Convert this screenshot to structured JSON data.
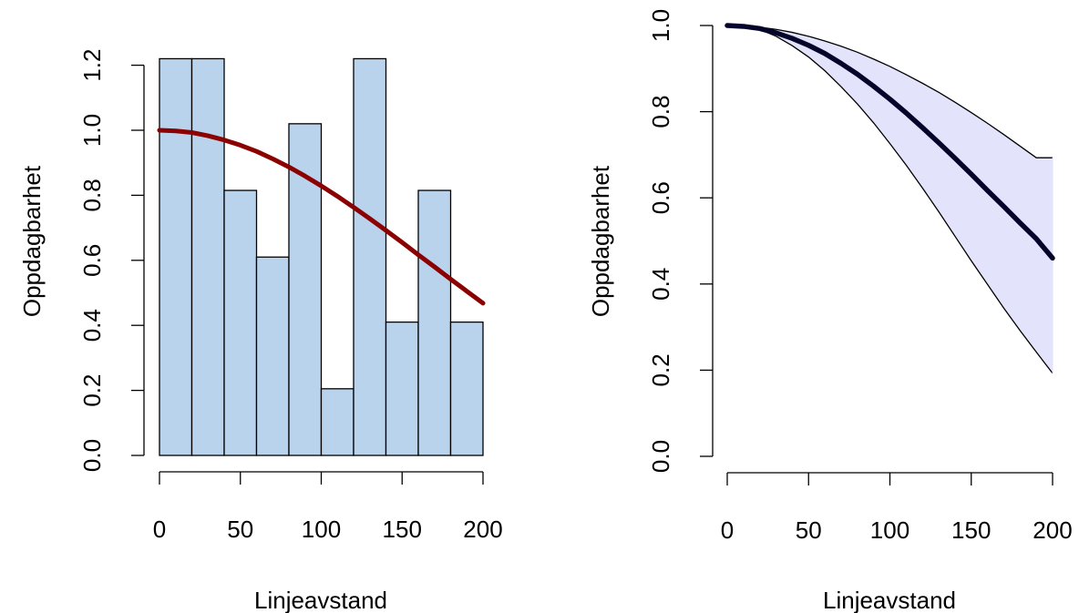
{
  "colors": {
    "bar_fill": "#bad3ec",
    "bar_stroke": "#000000",
    "fit_curve": "#8b0000",
    "band_fill": "#e3e3fb",
    "mean_curve": "#05052b",
    "bound_curve": "#000000",
    "axis": "#000000"
  },
  "chart_data": [
    {
      "type": "bar",
      "subtype": "histogram",
      "title": "",
      "xlabel": "Linjeavstand",
      "ylabel": "Oppdagbarhet",
      "xlim": [
        0,
        200
      ],
      "ylim": [
        0,
        1.3
      ],
      "x_ticks": [
        0,
        50,
        100,
        150,
        200
      ],
      "y_ticks": [
        0.0,
        0.2,
        0.4,
        0.6,
        0.8,
        1.0,
        1.2
      ],
      "x_tick_labels": [
        "0",
        "50",
        "100",
        "150",
        "200"
      ],
      "y_tick_labels": [
        "0.0",
        "0.2",
        "0.4",
        "0.6",
        "0.8",
        "1.0",
        "1.2"
      ],
      "grid": false,
      "bin_edges": [
        0,
        20,
        40,
        60,
        80,
        100,
        120,
        140,
        160,
        180,
        200
      ],
      "values": [
        1.22,
        1.22,
        0.815,
        0.61,
        1.02,
        0.205,
        1.22,
        0.41,
        0.815,
        0.41
      ],
      "fit_curve": {
        "x": [
          0,
          10,
          20,
          30,
          40,
          50,
          60,
          70,
          80,
          90,
          100,
          110,
          120,
          130,
          140,
          150,
          160,
          170,
          180,
          190,
          200
        ],
        "y": [
          1.0,
          0.998,
          0.993,
          0.983,
          0.97,
          0.954,
          0.935,
          0.912,
          0.887,
          0.859,
          0.829,
          0.797,
          0.763,
          0.728,
          0.692,
          0.655,
          0.617,
          0.58,
          0.542,
          0.505,
          0.468
        ]
      }
    },
    {
      "type": "line",
      "title": "",
      "xlabel": "Linjeavstand",
      "ylabel": "Oppdagbarhet",
      "xlim": [
        0,
        200
      ],
      "ylim": [
        0,
        1.0
      ],
      "x_ticks": [
        0,
        50,
        100,
        150,
        200
      ],
      "y_ticks": [
        0.0,
        0.2,
        0.4,
        0.6,
        0.8,
        1.0
      ],
      "x_tick_labels": [
        "0",
        "50",
        "100",
        "150",
        "200"
      ],
      "y_tick_labels": [
        "0.0",
        "0.2",
        "0.4",
        "0.6",
        "0.8",
        "1.0"
      ],
      "grid": false,
      "x": [
        0,
        10,
        20,
        30,
        40,
        50,
        60,
        70,
        80,
        90,
        100,
        110,
        120,
        130,
        140,
        150,
        160,
        170,
        180,
        190,
        200
      ],
      "series": [
        {
          "role": "upper",
          "values": [
            1.0,
            0.999,
            0.996,
            0.991,
            0.984,
            0.975,
            0.964,
            0.952,
            0.938,
            0.922,
            0.905,
            0.886,
            0.866,
            0.845,
            0.822,
            0.798,
            0.773,
            0.747,
            0.72,
            0.693,
            0.693
          ]
        },
        {
          "role": "mean",
          "values": [
            1.0,
            0.998,
            0.993,
            0.983,
            0.97,
            0.954,
            0.935,
            0.912,
            0.887,
            0.859,
            0.829,
            0.797,
            0.763,
            0.728,
            0.692,
            0.655,
            0.617,
            0.58,
            0.542,
            0.505,
            0.46
          ]
        },
        {
          "role": "lower",
          "values": [
            1.0,
            0.998,
            0.991,
            0.975,
            0.953,
            0.927,
            0.895,
            0.858,
            0.818,
            0.774,
            0.726,
            0.676,
            0.623,
            0.568,
            0.511,
            0.454,
            0.399,
            0.344,
            0.292,
            0.242,
            0.193
          ]
        }
      ]
    }
  ]
}
